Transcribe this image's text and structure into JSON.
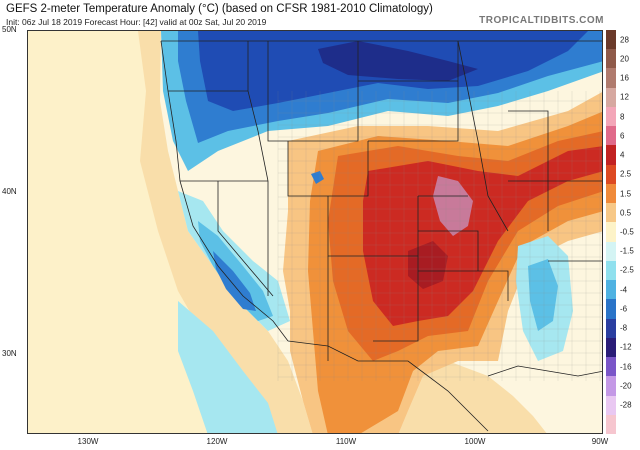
{
  "header": {
    "title": "GEFS 2-meter Temperature Anomaly (°C) (based on CFSR 1981-2010 Climatology)",
    "subtitle": "Init: 06z Jul 18 2019   Forecast Hour: [42]   valid at 00z Sat, Jul 20 2019",
    "brand": "TROPICALTIDBITS.COM"
  },
  "axes": {
    "lat_labels": [
      "50N",
      "40N",
      "30N"
    ],
    "lon_labels": [
      "130W",
      "120W",
      "110W",
      "100W",
      "90W"
    ]
  },
  "colorbar": {
    "labels": [
      "28",
      "20",
      "16",
      "12",
      "8",
      "6",
      "4",
      "2.5",
      "1.5",
      "0.5",
      "-0.5",
      "-1.5",
      "-2.5",
      "-4",
      "-6",
      "-8",
      "-12",
      "-16",
      "-20",
      "-28"
    ],
    "colors": [
      "#6b3a2a",
      "#8f5a4a",
      "#b07b6e",
      "#d6a8a0",
      "#f3a6b8",
      "#e06a8a",
      "#c22222",
      "#dd4a22",
      "#f08a3a",
      "#f7c887",
      "#fdf3c8",
      "#d4f4f4",
      "#8fe0ee",
      "#4fb2e2",
      "#2a74c8",
      "#2a3ea0",
      "#2a1d78",
      "#7a56c8",
      "#c499e6",
      "#e9c8f2"
    ]
  },
  "map": {
    "colors": {
      "ocean_warm": "#f9deaa",
      "ocean_pale": "#fdf1c9",
      "cool_light": "#a6e7f0",
      "cool_mid": "#5cc0e6",
      "cool_blue": "#2f7dd0",
      "cool_deep": "#1f4cb4",
      "cool_navy": "#1e2d8a",
      "warm_light": "#f8c583",
      "warm_mid": "#f0913a",
      "warm_orange": "#e46a26",
      "warm_red": "#cc2a22",
      "warm_dark": "#a81c22",
      "warm_pink": "#c87a9a",
      "neutral": "#fdf6df",
      "border": "#222222",
      "county": "#8a8a8a"
    }
  }
}
